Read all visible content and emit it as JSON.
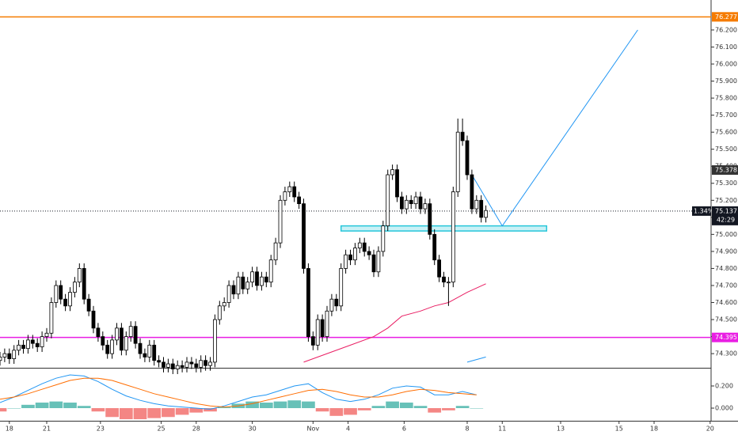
{
  "chart_data": [
    {
      "type": "candlestick",
      "x": [
        0,
        1,
        2,
        3,
        4,
        5,
        6,
        7,
        8,
        9,
        10,
        11,
        12,
        13,
        14,
        15,
        16,
        17,
        18,
        19,
        20,
        21,
        22,
        23,
        24,
        25,
        26,
        27,
        28,
        29,
        30,
        31,
        32,
        33,
        34,
        35,
        36,
        37,
        38,
        39,
        40,
        41,
        42,
        43,
        44,
        45,
        46,
        47,
        48,
        49,
        50,
        51,
        52,
        53,
        54,
        55,
        56,
        57,
        58,
        59,
        60,
        61,
        62,
        63,
        64,
        65,
        66,
        67,
        68,
        69,
        70,
        71,
        72,
        73,
        74,
        75,
        76,
        77,
        78,
        79,
        80,
        81,
        82,
        83,
        84,
        85,
        86,
        87,
        88,
        89,
        90,
        91,
        92,
        93,
        94,
        95,
        96,
        97,
        98,
        99,
        100,
        101,
        102,
        103,
        104
      ],
      "open": [
        74.26,
        74.28,
        74.3,
        74.27,
        74.32,
        74.35,
        74.33,
        74.38,
        74.36,
        74.34,
        74.4,
        74.42,
        74.6,
        74.7,
        74.62,
        74.58,
        74.66,
        74.72,
        74.8,
        74.62,
        74.55,
        74.45,
        74.4,
        74.35,
        74.3,
        74.38,
        74.45,
        74.32,
        74.4,
        74.46,
        74.36,
        74.3,
        74.28,
        74.35,
        74.26,
        74.25,
        74.22,
        74.24,
        74.21,
        74.23,
        74.22,
        74.25,
        74.24,
        74.22,
        74.26,
        74.23,
        74.25,
        74.5,
        74.58,
        74.6,
        74.7,
        74.65,
        74.75,
        74.68,
        74.72,
        74.78,
        74.7,
        74.75,
        74.72,
        74.85,
        74.95,
        75.2,
        75.25,
        75.28,
        75.22,
        75.18,
        74.8,
        74.4,
        74.35,
        74.5,
        74.4,
        74.55,
        74.62,
        74.58,
        74.8,
        74.88,
        74.85,
        74.92,
        74.95,
        74.9,
        74.88,
        74.78,
        74.9,
        75.05,
        75.35,
        75.38,
        75.22,
        75.15,
        75.2,
        75.18,
        75.22,
        75.15,
        75.18,
        75.0,
        74.85,
        74.75,
        74.72,
        74.72,
        75.25,
        75.6,
        75.55,
        75.35,
        75.15,
        75.2,
        75.1
      ],
      "high": [
        74.31,
        74.33,
        74.33,
        74.35,
        74.38,
        74.38,
        74.41,
        74.41,
        74.39,
        74.43,
        74.45,
        74.63,
        74.73,
        74.73,
        74.65,
        74.69,
        74.75,
        74.83,
        74.83,
        74.65,
        74.58,
        74.48,
        74.43,
        74.38,
        74.41,
        74.48,
        74.48,
        74.43,
        74.49,
        74.49,
        74.39,
        74.33,
        74.38,
        74.38,
        74.29,
        74.28,
        74.27,
        74.27,
        74.26,
        74.26,
        74.28,
        74.28,
        74.27,
        74.29,
        74.29,
        74.28,
        74.53,
        74.61,
        74.63,
        74.73,
        74.73,
        74.78,
        74.78,
        74.75,
        74.81,
        74.81,
        74.78,
        74.78,
        74.88,
        74.98,
        75.23,
        75.28,
        75.31,
        75.31,
        75.25,
        75.21,
        74.83,
        74.43,
        74.53,
        74.53,
        74.58,
        74.65,
        74.65,
        74.83,
        74.91,
        74.91,
        74.95,
        74.98,
        74.98,
        74.93,
        74.91,
        74.93,
        75.08,
        75.38,
        75.41,
        75.41,
        75.25,
        75.23,
        75.23,
        75.25,
        75.25,
        75.21,
        75.21,
        75.03,
        74.88,
        74.78,
        74.75,
        75.28,
        75.68,
        75.68,
        75.58,
        75.38,
        75.23,
        75.23,
        75.17
      ],
      "low": [
        74.23,
        74.25,
        74.24,
        74.24,
        74.29,
        74.3,
        74.3,
        74.33,
        74.31,
        74.31,
        74.37,
        74.39,
        74.57,
        74.59,
        74.55,
        74.55,
        74.63,
        74.69,
        74.59,
        74.52,
        74.42,
        74.37,
        74.32,
        74.27,
        74.27,
        74.35,
        74.29,
        74.29,
        74.37,
        74.33,
        74.27,
        74.25,
        74.25,
        74.23,
        74.22,
        74.19,
        74.19,
        74.18,
        74.18,
        74.19,
        74.19,
        74.21,
        74.19,
        74.19,
        74.2,
        74.2,
        74.22,
        74.47,
        74.55,
        74.57,
        74.62,
        74.62,
        74.65,
        74.65,
        74.69,
        74.67,
        74.67,
        74.69,
        74.69,
        74.82,
        74.92,
        75.17,
        75.22,
        75.19,
        75.15,
        74.77,
        74.37,
        74.32,
        74.32,
        74.37,
        74.37,
        74.52,
        74.55,
        74.55,
        74.77,
        74.82,
        74.82,
        74.89,
        74.87,
        74.85,
        74.75,
        74.75,
        74.87,
        75.02,
        75.32,
        75.19,
        75.12,
        75.12,
        75.15,
        75.15,
        75.12,
        75.12,
        74.97,
        74.82,
        74.72,
        74.69,
        74.58,
        74.69,
        75.22,
        75.52,
        75.32,
        75.12,
        75.12,
        75.07,
        75.07
      ],
      "close": [
        74.28,
        74.3,
        74.27,
        74.32,
        74.35,
        74.33,
        74.38,
        74.36,
        74.34,
        74.4,
        74.42,
        74.6,
        74.7,
        74.62,
        74.58,
        74.66,
        74.72,
        74.8,
        74.62,
        74.55,
        74.45,
        74.4,
        74.35,
        74.3,
        74.38,
        74.45,
        74.32,
        74.4,
        74.46,
        74.36,
        74.3,
        74.28,
        74.35,
        74.26,
        74.25,
        74.22,
        74.24,
        74.21,
        74.23,
        74.22,
        74.25,
        74.24,
        74.22,
        74.26,
        74.23,
        74.25,
        74.5,
        74.58,
        74.6,
        74.7,
        74.65,
        74.75,
        74.68,
        74.72,
        74.78,
        74.7,
        74.75,
        74.72,
        74.85,
        74.95,
        75.2,
        75.25,
        75.28,
        75.22,
        75.18,
        74.8,
        74.4,
        74.35,
        74.5,
        74.4,
        74.55,
        74.62,
        74.58,
        74.8,
        74.88,
        74.85,
        74.92,
        74.95,
        74.9,
        74.88,
        74.78,
        74.9,
        75.05,
        75.35,
        75.38,
        75.22,
        75.15,
        75.2,
        75.18,
        75.22,
        75.15,
        75.18,
        75.0,
        74.85,
        74.75,
        74.72,
        74.72,
        75.25,
        75.6,
        75.55,
        75.35,
        75.15,
        75.2,
        75.1,
        75.14
      ],
      "up_color": "#ffffff",
      "down_color": "#000000",
      "wick_color": "#000000",
      "xlim": [
        0,
        152.2
      ],
      "xticks": [
        {
          "value": 2,
          "label": "18"
        },
        {
          "value": 10,
          "label": "21"
        },
        {
          "value": 21.5,
          "label": "23"
        },
        {
          "value": 34.5,
          "label": "25"
        },
        {
          "value": 42,
          "label": "28"
        },
        {
          "value": 54,
          "label": "30"
        },
        {
          "value": 67,
          "label": "Nov"
        },
        {
          "value": 74.5,
          "label": "4"
        },
        {
          "value": 86.5,
          "label": "6"
        },
        {
          "value": 100,
          "label": "8"
        },
        {
          "value": 107.5,
          "label": "11"
        },
        {
          "value": 120,
          "label": "13"
        },
        {
          "value": 132.5,
          "label": "15"
        },
        {
          "value": 140,
          "label": "18"
        },
        {
          "value": 152,
          "label": "20"
        }
      ],
      "ylim": [
        74.217,
        76.376
      ],
      "yticks": [
        {
          "value": 74.3,
          "label": "74.300"
        },
        {
          "value": 74.4,
          "label": "74.400"
        },
        {
          "value": 74.5,
          "label": "74.500"
        },
        {
          "value": 74.6,
          "label": "74.600"
        },
        {
          "value": 74.7,
          "label": "74.700"
        },
        {
          "value": 74.8,
          "label": "74.800"
        },
        {
          "value": 74.9,
          "label": "74.900"
        },
        {
          "value": 75.0,
          "label": "75.000"
        },
        {
          "value": 75.1,
          "label": "75.100"
        },
        {
          "value": 75.2,
          "label": "75.200"
        },
        {
          "value": 75.3,
          "label": "75.300"
        },
        {
          "value": 75.4,
          "label": "75.400"
        },
        {
          "value": 75.5,
          "label": "75.500"
        },
        {
          "value": 75.6,
          "label": "75.600"
        },
        {
          "value": 75.7,
          "label": "75.700"
        },
        {
          "value": 75.8,
          "label": "75.800"
        },
        {
          "value": 75.9,
          "label": "75.900"
        },
        {
          "value": 76.0,
          "label": "76.000"
        },
        {
          "value": 76.1,
          "label": "76.100"
        },
        {
          "value": 76.2,
          "label": "76.200"
        }
      ],
      "grid": false,
      "hlines": [
        {
          "value": 76.277,
          "color": "#f57c00"
        },
        {
          "value": 74.395,
          "color": "#e91ee3"
        }
      ],
      "marker_price": {
        "value": 75.378,
        "color": "#333333"
      },
      "last_price": {
        "value": 75.137,
        "change": "1.34%",
        "countdown": "42:29",
        "color": "#131722"
      },
      "zone": {
        "x": [
          73,
          117
        ],
        "y": [
          75.02,
          75.05
        ],
        "color": "#26c6da"
      },
      "lines": [
        {
          "x": [
            101,
            107.5,
            136.5
          ],
          "values": [
            75.35,
            75.05,
            76.2
          ],
          "color": "#2196f3"
        },
        {
          "x": [
            65,
            70,
            75,
            80,
            83,
            86,
            90,
            93,
            96,
            100,
            104
          ],
          "values": [
            74.25,
            74.3,
            74.35,
            74.4,
            74.45,
            74.52,
            74.55,
            74.58,
            74.6,
            74.66,
            74.71
          ],
          "color": "#e91e63"
        },
        {
          "x": [
            100,
            104
          ],
          "values": [
            74.25,
            74.28
          ],
          "color": "#2196f3"
        }
      ]
    },
    {
      "type": "macd",
      "x": [
        0,
        3,
        6,
        9,
        12,
        15,
        18,
        21,
        24,
        27,
        30,
        33,
        36,
        39,
        42,
        45,
        48,
        51,
        54,
        57,
        60,
        63,
        66,
        69,
        72,
        75,
        78,
        81,
        84,
        87,
        90,
        93,
        96,
        99,
        102
      ],
      "macd": [
        0.05,
        0.1,
        0.16,
        0.22,
        0.27,
        0.3,
        0.29,
        0.24,
        0.17,
        0.11,
        0.07,
        0.04,
        0.02,
        0.01,
        0.0,
        -0.01,
        0.02,
        0.06,
        0.1,
        0.12,
        0.16,
        0.2,
        0.22,
        0.14,
        0.08,
        0.06,
        0.08,
        0.12,
        0.18,
        0.2,
        0.19,
        0.12,
        0.12,
        0.15,
        0.12
      ],
      "signal": [
        0.08,
        0.1,
        0.13,
        0.17,
        0.21,
        0.25,
        0.27,
        0.27,
        0.25,
        0.21,
        0.17,
        0.13,
        0.1,
        0.07,
        0.04,
        0.02,
        0.01,
        0.02,
        0.04,
        0.07,
        0.1,
        0.13,
        0.16,
        0.17,
        0.15,
        0.12,
        0.1,
        0.1,
        0.12,
        0.15,
        0.17,
        0.16,
        0.14,
        0.13,
        0.12
      ],
      "histogram": [
        -0.03,
        0,
        0.03,
        0.05,
        0.06,
        0.05,
        0.02,
        -0.03,
        -0.08,
        -0.1,
        -0.1,
        -0.09,
        -0.08,
        -0.06,
        -0.04,
        -0.03,
        0.01,
        0.04,
        0.06,
        0.05,
        0.06,
        0.07,
        0.06,
        -0.03,
        -0.07,
        -0.06,
        -0.02,
        0.02,
        0.06,
        0.05,
        0.02,
        -0.04,
        -0.02,
        0.02,
        0.0
      ],
      "macd_color": "#2196f3",
      "signal_color": "#ff6d00",
      "pos_color": "#26a69a",
      "neg_color": "#ef5350",
      "xlim": [
        0,
        152.2
      ],
      "ylim": [
        -0.114,
        0.357
      ],
      "yticks": [
        {
          "value": 0.2,
          "label": "0.200"
        },
        {
          "value": 0,
          "label": "0.000"
        }
      ]
    }
  ]
}
